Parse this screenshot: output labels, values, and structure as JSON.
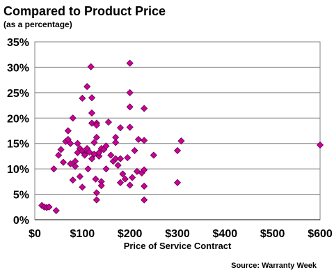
{
  "chart_data": {
    "type": "scatter",
    "title": "Compared to Product Price",
    "subtitle": "(as a percentage)",
    "xlabel": "Price of Service Contract",
    "ylabel": "",
    "source": "Source: Warranty Week",
    "xlim": [
      0,
      600
    ],
    "ylim": [
      0,
      35
    ],
    "xticks": [
      0,
      100,
      200,
      300,
      400,
      500,
      600
    ],
    "xtick_labels": [
      "$0",
      "$100",
      "$200",
      "$300",
      "$400",
      "$500",
      "$600"
    ],
    "yticks": [
      0,
      5,
      10,
      15,
      20,
      25,
      30,
      35
    ],
    "ytick_labels": [
      "0%",
      "5%",
      "10%",
      "15%",
      "20%",
      "25%",
      "30%",
      "35%"
    ],
    "grid": "horizontal",
    "marker": "diamond",
    "marker_color": "#CC0099",
    "points": [
      [
        15,
        2.8
      ],
      [
        20,
        2.5
      ],
      [
        25,
        2.4
      ],
      [
        30,
        2.5
      ],
      [
        45,
        1.8
      ],
      [
        40,
        10.0
      ],
      [
        50,
        12.7
      ],
      [
        55,
        13.8
      ],
      [
        60,
        11.3
      ],
      [
        65,
        15.4
      ],
      [
        70,
        15.8
      ],
      [
        70,
        17.5
      ],
      [
        75,
        15.0
      ],
      [
        75,
        11.0
      ],
      [
        80,
        20.0
      ],
      [
        80,
        7.8
      ],
      [
        85,
        11.5
      ],
      [
        85,
        10.5
      ],
      [
        90,
        15.0
      ],
      [
        90,
        13.2
      ],
      [
        95,
        14.0
      ],
      [
        95,
        8.5
      ],
      [
        100,
        13.5
      ],
      [
        100,
        23.9
      ],
      [
        100,
        6.4
      ],
      [
        105,
        13.0
      ],
      [
        105,
        12.7
      ],
      [
        110,
        26.2
      ],
      [
        110,
        14.0
      ],
      [
        112,
        10.0
      ],
      [
        115,
        13.3
      ],
      [
        118,
        30.1
      ],
      [
        120,
        24.0
      ],
      [
        120,
        21.0
      ],
      [
        120,
        19.0
      ],
      [
        120,
        12.0
      ],
      [
        125,
        12.9
      ],
      [
        125,
        15.2
      ],
      [
        128,
        8.0
      ],
      [
        130,
        19.0
      ],
      [
        130,
        18.6
      ],
      [
        130,
        16.2
      ],
      [
        130,
        5.3
      ],
      [
        130,
        3.9
      ],
      [
        135,
        12.5
      ],
      [
        135,
        13.2
      ],
      [
        140,
        14.0
      ],
      [
        140,
        7.5
      ],
      [
        140,
        6.7
      ],
      [
        145,
        13.8
      ],
      [
        150,
        14.5
      ],
      [
        150,
        10.0
      ],
      [
        155,
        19.2
      ],
      [
        160,
        12.7
      ],
      [
        165,
        11.5
      ],
      [
        170,
        16.2
      ],
      [
        170,
        15.2
      ],
      [
        170,
        12.0
      ],
      [
        175,
        10.7
      ],
      [
        180,
        12.0
      ],
      [
        180,
        18.1
      ],
      [
        180,
        7.3
      ],
      [
        185,
        9.0
      ],
      [
        190,
        8.0
      ],
      [
        195,
        12.2
      ],
      [
        200,
        30.8
      ],
      [
        200,
        25.0
      ],
      [
        200,
        22.2
      ],
      [
        200,
        18.2
      ],
      [
        200,
        6.8
      ],
      [
        205,
        8.3
      ],
      [
        210,
        13.6
      ],
      [
        215,
        9.5
      ],
      [
        218,
        15.8
      ],
      [
        225,
        9.2
      ],
      [
        230,
        21.9
      ],
      [
        230,
        15.6
      ],
      [
        230,
        9.8
      ],
      [
        230,
        6.6
      ],
      [
        230,
        3.9
      ],
      [
        250,
        12.7
      ],
      [
        300,
        13.6
      ],
      [
        300,
        7.3
      ],
      [
        308,
        15.5
      ],
      [
        600,
        14.7
      ]
    ]
  }
}
